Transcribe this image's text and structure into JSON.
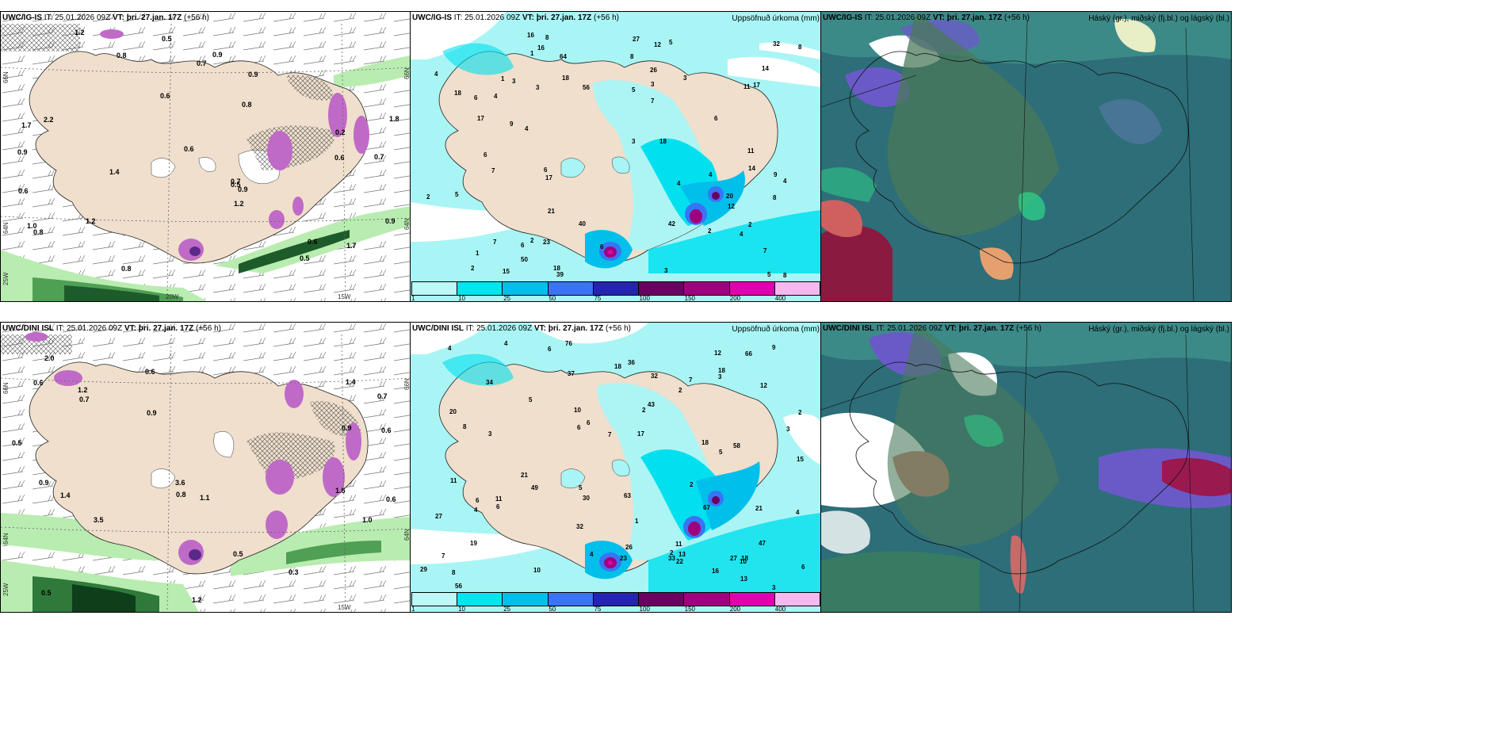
{
  "panels": [
    {
      "id": "p1",
      "model": "UWC/IG-IS",
      "it_label": "IT:",
      "it": "25.01.2026 09Z",
      "vt_label": "VT:",
      "vt": "þri. 27.jan. 17Z",
      "lead": "(+56 h)",
      "right_title": ""
    },
    {
      "id": "p2",
      "model": "UWC/IG-IS",
      "it_label": "IT:",
      "it": "25.01.2026 09Z",
      "vt_label": "VT:",
      "vt": "þri. 27.jan. 17Z",
      "lead": "(+56 h)",
      "right_title": "Uppsöfnuð úrkoma (mm)"
    },
    {
      "id": "p3",
      "model": "UWC/IG-IS",
      "it_label": "IT:",
      "it": "25.01.2026 09Z",
      "vt_label": "VT:",
      "vt": "þri. 27.jan. 17Z",
      "lead": "(+56 h)",
      "right_title": "Háský (gr.), miðský (fj.bl.) og lágský (bl.)"
    },
    {
      "id": "p4",
      "model": "UWC/DINI ISL",
      "it_label": "IT:",
      "it": "25.01.2026 09Z",
      "vt_label": "VT:",
      "vt": "þri. 27.jan. 17Z",
      "lead": "(+56 h)",
      "right_title": ""
    },
    {
      "id": "p5",
      "model": "UWC/DINI ISL",
      "it_label": "IT:",
      "it": "25.01.2026 09Z",
      "vt_label": "VT:",
      "vt": "þri. 27.jan. 17Z",
      "lead": "(+56 h)",
      "right_title": "Uppsöfnuð úrkoma (mm)"
    },
    {
      "id": "p6",
      "model": "UWC/DINI ISL",
      "it_label": "IT:",
      "it": "25.01.2026 09Z",
      "vt_label": "VT:",
      "vt": "þri. 27.jan. 17Z",
      "lead": "(+56 h)",
      "right_title": "Háský (gr.), miðský (fj.bl.) og lágský (bl.)"
    }
  ],
  "colorbar": {
    "labels": [
      "1",
      "10",
      "25",
      "50",
      "75",
      "100",
      "150",
      "200",
      "400"
    ],
    "colors": [
      "#bdf7f7",
      "#00e5ee",
      "#00bfea",
      "#3a74f5",
      "#2424b0",
      "#6a0060",
      "#a0007e",
      "#e000b0",
      "#f7b8f0"
    ]
  },
  "axis_labels": {
    "p1": {
      "lat66": "66N",
      "lat64": "64N",
      "lat64b": "25W",
      "lon20": "20W",
      "lon15": "15W",
      "lat66r": "66N",
      "lat64r": "64N"
    },
    "p4": {
      "lat66": "66N",
      "lat64": "64N",
      "lat64b": "25W",
      "lon15": "15W",
      "lat66r": "66N",
      "lat64r": "64N"
    }
  },
  "precip_labels_top": [
    "4",
    "4",
    "3",
    "4",
    "3",
    "3",
    "6",
    "5",
    "5",
    "14",
    "5",
    "3",
    "1",
    "8",
    "9",
    "1",
    "6",
    "7",
    "5",
    "7",
    "8",
    "8",
    "8",
    "11",
    "17",
    "18",
    "12",
    "23",
    "2",
    "7",
    "17",
    "6",
    "39",
    "16",
    "11",
    "18",
    "9",
    "15",
    "6",
    "18",
    "8",
    "20",
    "17",
    "50",
    "64",
    "56",
    "12",
    "18",
    "3",
    "4",
    "6",
    "4",
    "7",
    "2",
    "2",
    "32",
    "21",
    "16",
    "27",
    "40",
    "42",
    "14",
    "26",
    "4",
    "2",
    "1",
    "2",
    "4",
    "3",
    "6"
  ],
  "precip_labels_bottom": [
    "6",
    "1",
    "4",
    "6",
    "10",
    "17",
    "32",
    "8",
    "7",
    "6",
    "2",
    "3",
    "3",
    "3",
    "4",
    "5",
    "4",
    "6",
    "6",
    "2",
    "11",
    "10",
    "9",
    "10",
    "21",
    "8",
    "18",
    "12",
    "33",
    "19",
    "18",
    "13",
    "36",
    "47",
    "29",
    "76",
    "63",
    "18",
    "6",
    "7",
    "11",
    "7",
    "27",
    "58",
    "66",
    "56",
    "5",
    "16",
    "21",
    "5",
    "3",
    "2",
    "26",
    "4",
    "2",
    "2",
    "4",
    "37",
    "20",
    "12",
    "32",
    "34",
    "23",
    "15",
    "43",
    "27",
    "30",
    "22",
    "13",
    "11",
    "18",
    "67",
    "49"
  ],
  "wind_labels_top": [
    "0.2",
    "0.5",
    "0.5",
    "0.6",
    "0.6",
    "0.9",
    "1.2",
    "0.7",
    "0.8",
    "0.8",
    "1.7",
    "1.0",
    "1.2",
    "0.6",
    "0.7",
    "0.9",
    "0.9",
    "1.2",
    "0.8",
    "0.9",
    "1.4",
    "0.7",
    "1.8",
    "2.2",
    "0.5",
    "0.6",
    "0.9",
    "1.7",
    "0.8",
    "0.6"
  ],
  "wind_labels_bottom": [
    "0.3",
    "0.5",
    "1.0",
    "0.7",
    "3.6",
    "3.5",
    "0.9",
    "1.5",
    "0.6",
    "0.9",
    "0.5",
    "1.2",
    "1.2",
    "0.6",
    "0.5",
    "1.1",
    "0.9",
    "1.4",
    "0.6",
    "0.6",
    "0.7",
    "2.0",
    "0.8",
    "1.4"
  ]
}
